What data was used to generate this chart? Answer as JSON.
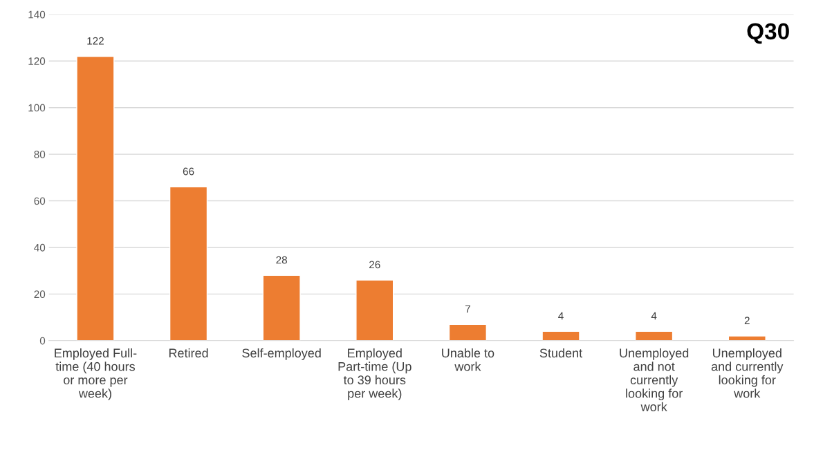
{
  "chart_data": {
    "type": "bar",
    "title": "Q30",
    "categories": [
      "Employed Full-\ntime (40 hours\nor more per\nweek)",
      "Retired",
      "Self-employed",
      "Employed\nPart-time (Up\nto 39 hours\nper week)",
      "Unable to\nwork",
      "Student",
      "Unemployed\nand not\ncurrently\nlooking for\nwork",
      "Unemployed\nand currently\nlooking for\nwork"
    ],
    "values": [
      122,
      66,
      28,
      26,
      7,
      4,
      4,
      2
    ],
    "color": "#ed7d31",
    "ylim": [
      0,
      140
    ],
    "yticks": [
      0,
      20,
      40,
      60,
      80,
      100,
      120,
      140
    ],
    "grid": "y",
    "data_labels": true
  }
}
